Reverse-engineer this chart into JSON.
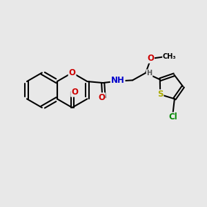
{
  "bg_color": "#e8e8e8",
  "atom_colors": {
    "C": "#000000",
    "O": "#cc0000",
    "N": "#0000cc",
    "S": "#aaaa00",
    "Cl": "#008800",
    "H": "#555555"
  },
  "bond_color": "#000000",
  "bond_width": 1.5,
  "fig_size": [
    3.0,
    3.0
  ],
  "dpi": 100
}
